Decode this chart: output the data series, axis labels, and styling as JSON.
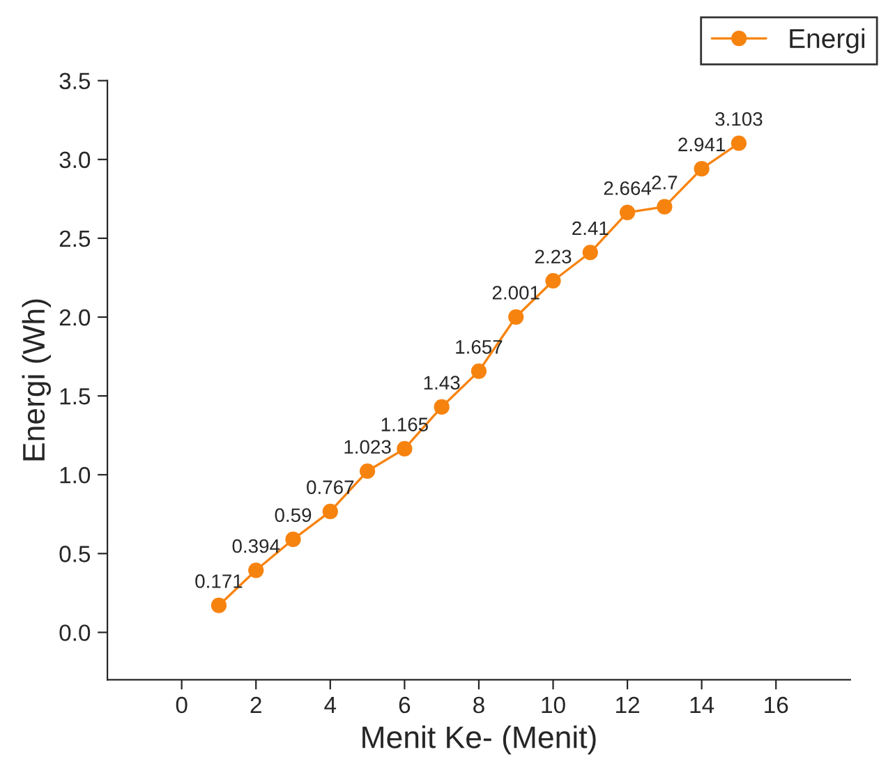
{
  "chart_data": {
    "type": "line",
    "xlabel": "Menit Ke- (Menit)",
    "ylabel": "Energi (Wh)",
    "x": [
      1,
      2,
      3,
      4,
      5,
      6,
      7,
      8,
      9,
      10,
      11,
      12,
      13,
      14,
      15
    ],
    "series": [
      {
        "name": "Energi",
        "color": "#f7830f",
        "values": [
          0.171,
          0.394,
          0.59,
          0.767,
          1.023,
          1.165,
          1.43,
          1.657,
          2.001,
          2.23,
          2.41,
          2.664,
          2.7,
          2.941,
          3.103
        ]
      }
    ],
    "value_labels": [
      "0.171",
      "0.394",
      "0.59",
      "0.767",
      "1.023",
      "1.165",
      "1.43",
      "1.657",
      "2.001",
      "2.23",
      "2.41",
      "2.664",
      "2.7",
      "2.941",
      "3.103"
    ],
    "xlim": [
      -2,
      18
    ],
    "xticks": [
      0,
      2,
      4,
      6,
      8,
      10,
      12,
      14,
      16
    ],
    "ylim": [
      -0.3,
      3.5
    ],
    "yticks": [
      {
        "value": 0,
        "label": "0.0"
      },
      0.5,
      {
        "value": 1,
        "label": "1.0"
      },
      1.5,
      {
        "value": 2,
        "label": "2.0"
      },
      2.5,
      {
        "value": 3,
        "label": "3.0"
      },
      3.5
    ],
    "legend": "top right",
    "marker": "circle",
    "line_style": "solid",
    "grid": false
  }
}
